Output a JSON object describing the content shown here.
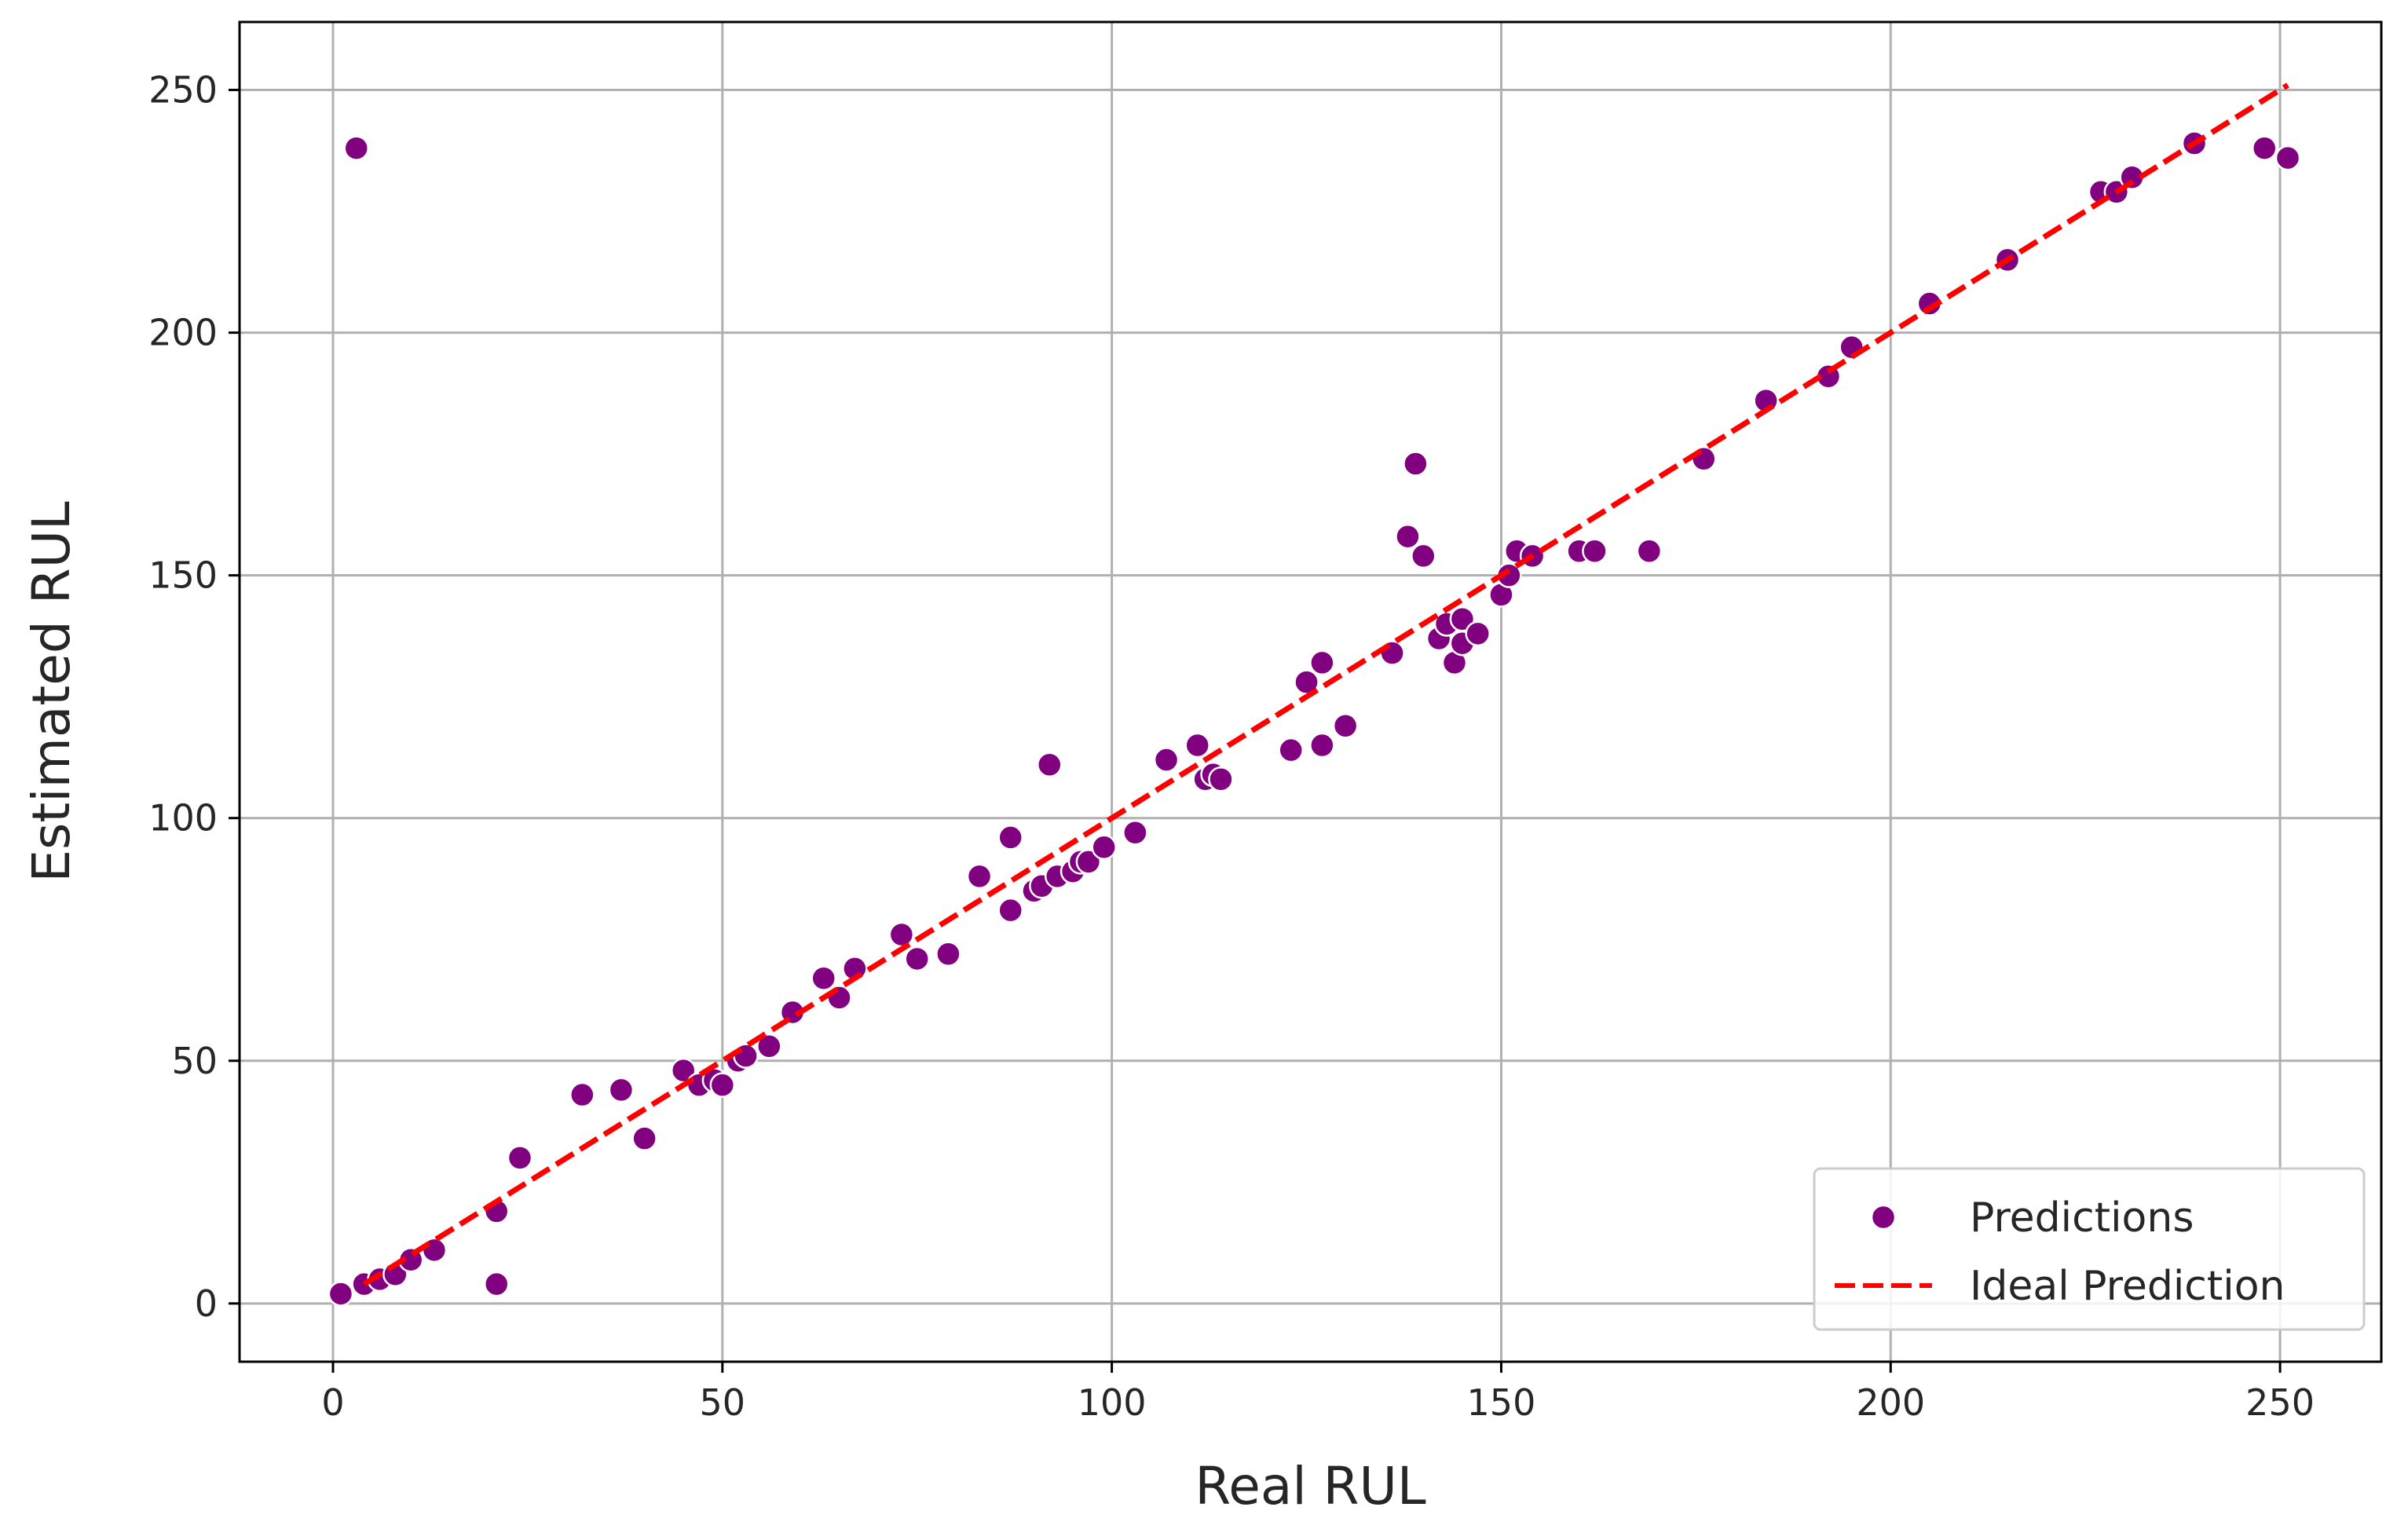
{
  "chart_data": {
    "type": "scatter",
    "xlabel": "Real RUL",
    "ylabel": "Estimated RUL",
    "xlim": [
      -12,
      263
    ],
    "ylim": [
      -12,
      264
    ],
    "xticks": [
      0,
      50,
      100,
      150,
      200,
      250
    ],
    "yticks": [
      0,
      50,
      100,
      150,
      200,
      250
    ],
    "grid": true,
    "legend_position": "lower-right",
    "colors": {
      "points": "#800080",
      "point_edge": "#ffffff",
      "ideal_line": "#ff0000"
    },
    "series": [
      {
        "name": "Predictions",
        "kind": "scatter",
        "points": [
          [
            1,
            2
          ],
          [
            3,
            238
          ],
          [
            4,
            4
          ],
          [
            6,
            5
          ],
          [
            8,
            6
          ],
          [
            10,
            9
          ],
          [
            13,
            11
          ],
          [
            21,
            19
          ],
          [
            21,
            4
          ],
          [
            24,
            30
          ],
          [
            32,
            43
          ],
          [
            37,
            44
          ],
          [
            40,
            34
          ],
          [
            45,
            48
          ],
          [
            47,
            45
          ],
          [
            49,
            46
          ],
          [
            50,
            45
          ],
          [
            52,
            50
          ],
          [
            53,
            51
          ],
          [
            56,
            53
          ],
          [
            59,
            60
          ],
          [
            63,
            67
          ],
          [
            65,
            63
          ],
          [
            67,
            69
          ],
          [
            73,
            76
          ],
          [
            75,
            71
          ],
          [
            79,
            72
          ],
          [
            83,
            88
          ],
          [
            87,
            96
          ],
          [
            87,
            81
          ],
          [
            90,
            85
          ],
          [
            91,
            86
          ],
          [
            92,
            111
          ],
          [
            93,
            88
          ],
          [
            95,
            89
          ],
          [
            96,
            91
          ],
          [
            97,
            91
          ],
          [
            99,
            94
          ],
          [
            103,
            97
          ],
          [
            107,
            112
          ],
          [
            111,
            115
          ],
          [
            112,
            108
          ],
          [
            113,
            109
          ],
          [
            114,
            108
          ],
          [
            123,
            114
          ],
          [
            125,
            128
          ],
          [
            127,
            132
          ],
          [
            127,
            115
          ],
          [
            130,
            119
          ],
          [
            136,
            134
          ],
          [
            138,
            158
          ],
          [
            139,
            173
          ],
          [
            140,
            154
          ],
          [
            142,
            137
          ],
          [
            143,
            140
          ],
          [
            144,
            132
          ],
          [
            145,
            136
          ],
          [
            145,
            141
          ],
          [
            147,
            138
          ],
          [
            150,
            146
          ],
          [
            151,
            150
          ],
          [
            152,
            155
          ],
          [
            154,
            154
          ],
          [
            160,
            155
          ],
          [
            162,
            155
          ],
          [
            169,
            155
          ],
          [
            176,
            174
          ],
          [
            184,
            186
          ],
          [
            192,
            191
          ],
          [
            195,
            197
          ],
          [
            205,
            206
          ],
          [
            215,
            215
          ],
          [
            227,
            229
          ],
          [
            229,
            229
          ],
          [
            231,
            232
          ],
          [
            239,
            239
          ],
          [
            248,
            238
          ],
          [
            251,
            236
          ]
        ]
      },
      {
        "name": "Ideal Prediction",
        "kind": "line",
        "points": [
          [
            4,
            4
          ],
          [
            251,
            251
          ]
        ]
      }
    ]
  }
}
